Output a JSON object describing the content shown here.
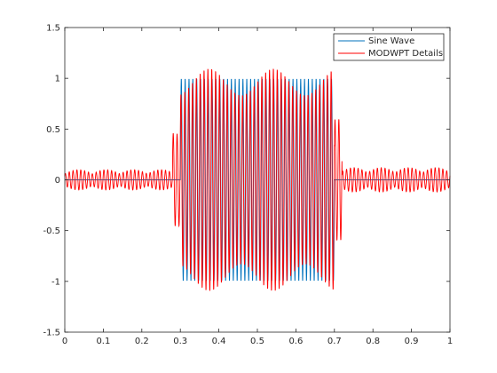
{
  "chart_data": {
    "type": "line",
    "title": "",
    "xlabel": "",
    "ylabel": "",
    "xlim": [
      0,
      1
    ],
    "ylim": [
      -1.5,
      1.5
    ],
    "x_ticks": [
      "0",
      "0.1",
      "0.2",
      "0.3",
      "0.4",
      "0.5",
      "0.6",
      "0.7",
      "0.8",
      "0.9",
      "1"
    ],
    "y_ticks": [
      "-1.5",
      "-1",
      "-0.5",
      "0",
      "0.5",
      "1",
      "1.5"
    ],
    "grid": false,
    "legend_position": "top-right",
    "series": [
      {
        "name": "Sine Wave",
        "color": "#0072BD",
        "segments": [
          {
            "x_start": 0,
            "x_end": 0.3,
            "amplitude": 0
          },
          {
            "x_start": 0.3,
            "x_end": 0.7,
            "amplitude": 1
          },
          {
            "x_start": 0.7,
            "x_end": 1,
            "amplitude": 0
          }
        ]
      },
      {
        "name": "MODWPT Details",
        "color": "#FF0000",
        "segments": [
          {
            "x_start": 0,
            "x_end": 0.28,
            "amplitude": 0.1
          },
          {
            "x_start": 0.28,
            "x_end": 0.3,
            "amplitude": 0.6
          },
          {
            "x_start": 0.3,
            "x_end": 0.7,
            "amplitude": 1.1
          },
          {
            "x_start": 0.7,
            "x_end": 0.72,
            "amplitude": 0.6
          },
          {
            "x_start": 0.72,
            "x_end": 1,
            "amplitude": 0.12
          }
        ]
      }
    ]
  }
}
